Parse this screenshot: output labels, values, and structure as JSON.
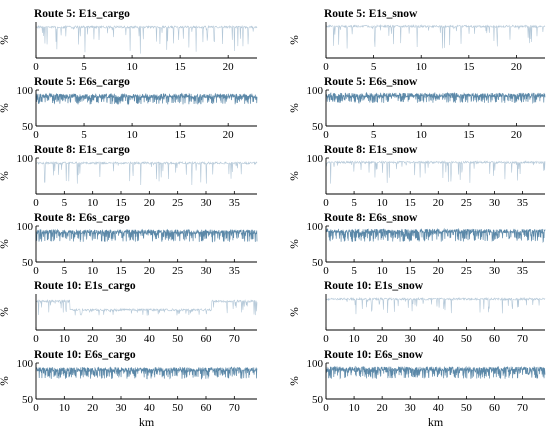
{
  "chart_data": [
    {
      "type": "line",
      "title": "Route 5: E1s_cargo",
      "ylabel": "%",
      "xlabel": "",
      "xlim": [
        0,
        23
      ],
      "ylim": [
        50,
        100
      ],
      "x_ticks": [
        0,
        5,
        10,
        15,
        20
      ],
      "y_ticks": [],
      "series": [
        {
          "dense": false,
          "base": 93,
          "min_dip": 55,
          "color": "#b4c8d8"
        }
      ]
    },
    {
      "type": "line",
      "title": "Route 5: E1s_snow",
      "ylabel": "%",
      "xlabel": "",
      "xlim": [
        0,
        23
      ],
      "ylim": [
        50,
        100
      ],
      "x_ticks": [
        0,
        5,
        10,
        15,
        20
      ],
      "y_ticks": [],
      "series": [
        {
          "dense": false,
          "base": 94,
          "min_dip": 62,
          "color": "#b4c8d8"
        }
      ]
    },
    {
      "type": "line",
      "title": "Route 5: E6s_cargo",
      "ylabel": "%",
      "xlabel": "",
      "xlim": [
        0,
        23
      ],
      "ylim": [
        50,
        100
      ],
      "x_ticks": [
        0,
        5,
        10,
        15,
        20
      ],
      "y_ticks": [
        50,
        100
      ],
      "series": [
        {
          "dense": true,
          "base": 92,
          "min_dip": 80,
          "color": "#5b88a8"
        }
      ]
    },
    {
      "type": "line",
      "title": "Route 5: E6s_snow",
      "ylabel": "%",
      "xlabel": "",
      "xlim": [
        0,
        23
      ],
      "ylim": [
        50,
        100
      ],
      "x_ticks": [
        0,
        5,
        10,
        15,
        20
      ],
      "y_ticks": [
        50,
        100
      ],
      "series": [
        {
          "dense": true,
          "base": 93,
          "min_dip": 82,
          "color": "#5b88a8"
        }
      ]
    },
    {
      "type": "line",
      "title": "Route 8: E1s_cargo",
      "ylabel": "%",
      "xlabel": "",
      "xlim": [
        0,
        39
      ],
      "ylim": [
        50,
        100
      ],
      "x_ticks": [
        0,
        5,
        10,
        15,
        20,
        25,
        30,
        35
      ],
      "y_ticks": [
        100
      ],
      "series": [
        {
          "dense": false,
          "base": 93,
          "min_dip": 62,
          "color": "#b4c8d8"
        }
      ]
    },
    {
      "type": "line",
      "title": "Route 8: E1s_snow",
      "ylabel": "%",
      "xlabel": "",
      "xlim": [
        0,
        39
      ],
      "ylim": [
        50,
        100
      ],
      "x_ticks": [
        0,
        5,
        10,
        15,
        20,
        25,
        30,
        35
      ],
      "y_ticks": [
        100
      ],
      "series": [
        {
          "dense": false,
          "base": 94,
          "min_dip": 64,
          "color": "#b4c8d8"
        }
      ]
    },
    {
      "type": "line",
      "title": "Route 8: E6s_cargo",
      "ylabel": "%",
      "xlabel": "",
      "xlim": [
        0,
        39
      ],
      "ylim": [
        50,
        100
      ],
      "x_ticks": [
        0,
        5,
        10,
        15,
        20,
        25,
        30,
        35
      ],
      "y_ticks": [
        50,
        100
      ],
      "series": [
        {
          "dense": true,
          "base": 92,
          "min_dip": 78,
          "color": "#5b88a8"
        }
      ]
    },
    {
      "type": "line",
      "title": "Route 8: E6s_snow",
      "ylabel": "%",
      "xlabel": "",
      "xlim": [
        0,
        39
      ],
      "ylim": [
        50,
        100
      ],
      "x_ticks": [
        0,
        5,
        10,
        15,
        20,
        25,
        30,
        35
      ],
      "y_ticks": [
        50,
        100
      ],
      "series": [
        {
          "dense": true,
          "base": 93,
          "min_dip": 78,
          "color": "#5b88a8"
        }
      ]
    },
    {
      "type": "line",
      "title": "Route 10: E1s_cargo",
      "ylabel": "%",
      "xlabel": "",
      "xlim": [
        0,
        78
      ],
      "ylim": [
        50,
        100
      ],
      "x_ticks": [
        0,
        10,
        20,
        30,
        40,
        50,
        60,
        70
      ],
      "y_ticks": [],
      "series": [
        {
          "dense": false,
          "base": 90,
          "min_dip": 70,
          "color": "#b4c8d8",
          "level_shift": [
            [
              12,
              62,
              78
            ]
          ]
        }
      ]
    },
    {
      "type": "line",
      "title": "Route 10: E1s_snow",
      "ylabel": "%",
      "xlabel": "",
      "xlim": [
        0,
        78
      ],
      "ylim": [
        50,
        100
      ],
      "x_ticks": [
        0,
        10,
        20,
        30,
        40,
        50,
        60,
        70
      ],
      "y_ticks": [],
      "series": [
        {
          "dense": false,
          "base": 93,
          "min_dip": 72,
          "color": "#b4c8d8"
        }
      ]
    },
    {
      "type": "line",
      "title": "Route 10: E6s_cargo",
      "ylabel": "%",
      "xlabel": "km",
      "xlim": [
        0,
        78
      ],
      "ylim": [
        50,
        100
      ],
      "x_ticks": [
        0,
        10,
        20,
        30,
        40,
        50,
        60,
        70
      ],
      "y_ticks": [
        50,
        100
      ],
      "series": [
        {
          "dense": true,
          "base": 91,
          "min_dip": 78,
          "color": "#5b88a8"
        }
      ]
    },
    {
      "type": "line",
      "title": "Route 10: E6s_snow",
      "ylabel": "%",
      "xlabel": "km",
      "xlim": [
        0,
        78
      ],
      "ylim": [
        50,
        100
      ],
      "x_ticks": [
        0,
        10,
        20,
        30,
        40,
        50,
        60,
        70
      ],
      "y_ticks": [
        50,
        100
      ],
      "series": [
        {
          "dense": true,
          "base": 92,
          "min_dip": 78,
          "color": "#5b88a8"
        }
      ]
    }
  ]
}
